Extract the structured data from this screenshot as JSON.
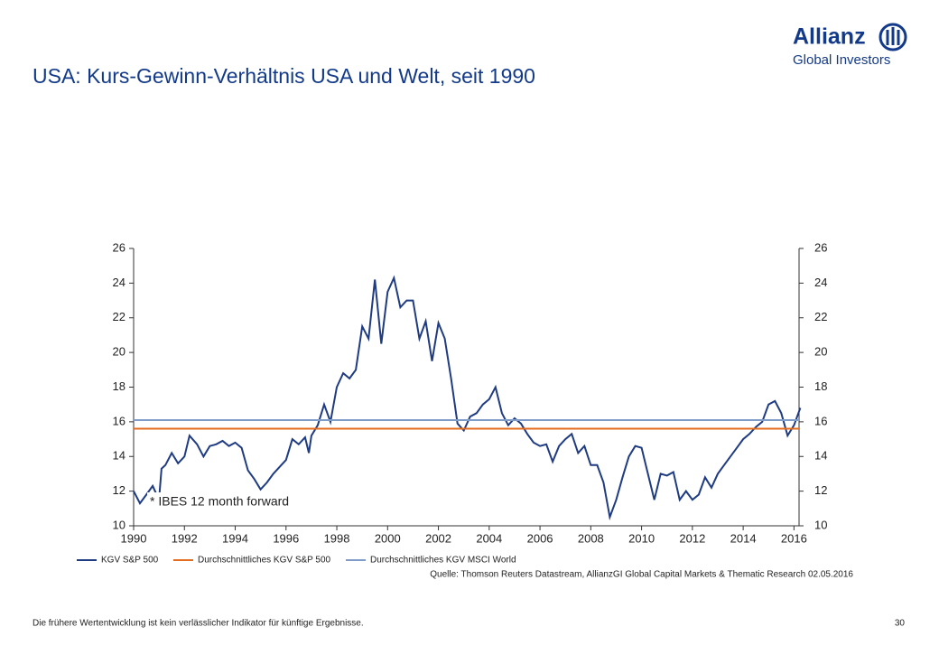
{
  "header": {
    "brand": "Allianz",
    "brand_sub": "Global Investors",
    "title": "USA: Kurs-Gewinn-Verhältnis USA und Welt, seit 1990"
  },
  "chart_data": {
    "type": "line",
    "annotation": "* IBES 12 month forward",
    "source": "Quelle: Thomson Reuters Datastream, AllianzGI Global Capital Markets & Thematic Research 02.05.2016",
    "xlim": [
      1990,
      2016.2
    ],
    "xticks": [
      1990,
      1992,
      1994,
      1996,
      1998,
      2000,
      2002,
      2004,
      2006,
      2008,
      2010,
      2012,
      2014,
      2016
    ],
    "ylim": [
      10,
      26
    ],
    "yticks": [
      10,
      12,
      14,
      16,
      18,
      20,
      22,
      24,
      26
    ],
    "series": [
      {
        "name": "KGV S&P 500",
        "color": "#1f3b82",
        "x": [
          1990.0,
          1990.25,
          1990.5,
          1990.75,
          1991.0,
          1991.1,
          1991.25,
          1991.5,
          1991.75,
          1992.0,
          1992.2,
          1992.5,
          1992.75,
          1993.0,
          1993.25,
          1993.5,
          1993.75,
          1994.0,
          1994.25,
          1994.5,
          1994.75,
          1995.0,
          1995.25,
          1995.5,
          1995.75,
          1996.0,
          1996.25,
          1996.5,
          1996.75,
          1996.9,
          1997.0,
          1997.25,
          1997.5,
          1997.75,
          1998.0,
          1998.25,
          1998.5,
          1998.75,
          1999.0,
          1999.25,
          1999.5,
          1999.75,
          2000.0,
          2000.25,
          2000.5,
          2000.75,
          2001.0,
          2001.25,
          2001.5,
          2001.75,
          2002.0,
          2002.25,
          2002.5,
          2002.75,
          2003.0,
          2003.25,
          2003.5,
          2003.75,
          2004.0,
          2004.25,
          2004.5,
          2004.75,
          2005.0,
          2005.25,
          2005.5,
          2005.75,
          2006.0,
          2006.25,
          2006.5,
          2006.75,
          2007.0,
          2007.25,
          2007.5,
          2007.75,
          2008.0,
          2008.25,
          2008.5,
          2008.75,
          2009.0,
          2009.25,
          2009.5,
          2009.75,
          2010.0,
          2010.25,
          2010.5,
          2010.75,
          2011.0,
          2011.25,
          2011.5,
          2011.75,
          2012.0,
          2012.25,
          2012.5,
          2012.75,
          2013.0,
          2013.25,
          2013.5,
          2013.75,
          2014.0,
          2014.25,
          2014.5,
          2014.75,
          2015.0,
          2015.25,
          2015.5,
          2015.75,
          2016.0,
          2016.25
        ],
        "values": [
          12.0,
          11.3,
          11.8,
          12.3,
          11.5,
          13.3,
          13.5,
          14.2,
          13.6,
          14.0,
          15.2,
          14.7,
          14.0,
          14.6,
          14.7,
          14.9,
          14.6,
          14.8,
          14.5,
          13.2,
          12.7,
          12.1,
          12.5,
          13.0,
          13.4,
          13.8,
          15.0,
          14.7,
          15.1,
          14.2,
          15.2,
          15.8,
          17.0,
          16.0,
          18.0,
          18.8,
          18.5,
          19.0,
          21.5,
          20.8,
          24.2,
          20.5,
          23.5,
          24.3,
          22.6,
          23.0,
          23.0,
          20.8,
          21.8,
          19.5,
          21.7,
          20.8,
          18.5,
          15.9,
          15.5,
          16.3,
          16.5,
          17.0,
          17.3,
          18.0,
          16.5,
          15.8,
          16.2,
          15.9,
          15.3,
          14.8,
          14.6,
          14.7,
          13.7,
          14.6,
          15.0,
          15.3,
          14.2,
          14.6,
          13.5,
          13.5,
          12.5,
          10.5,
          11.5,
          12.8,
          14.0,
          14.6,
          14.5,
          13.0,
          11.5,
          13.0,
          12.9,
          13.1,
          11.5,
          12.0,
          11.5,
          11.8,
          12.8,
          12.2,
          13.0,
          13.5,
          14.0,
          14.5,
          15.0,
          15.3,
          15.7,
          16.0,
          17.0,
          17.2,
          16.5,
          15.2,
          15.8,
          16.8
        ]
      },
      {
        "name": "Durchschnittliches KGV S&P 500",
        "color": "#e46c1e",
        "value": 15.6
      },
      {
        "name": "Durchschnittliches KGV MSCI World",
        "color": "#7f9cc9",
        "value": 16.1
      }
    ]
  },
  "footer": {
    "disclaimer": "Die frühere Wertentwicklung ist kein verlässlicher Indikator für künftige Ergebnisse.",
    "page": "30"
  }
}
